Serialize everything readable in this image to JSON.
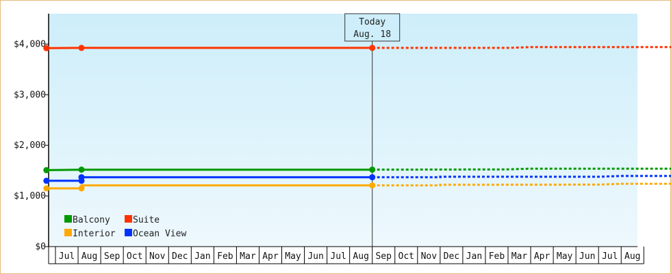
{
  "chart_data": {
    "type": "line",
    "y_ticks": [
      {
        "value": 0,
        "label": "$0"
      },
      {
        "value": 1000,
        "label": "$1,000"
      },
      {
        "value": 2000,
        "label": "$2,000"
      },
      {
        "value": 3000,
        "label": "$3,000"
      },
      {
        "value": 4000,
        "label": "$4,000"
      }
    ],
    "ylim": [
      0,
      4600
    ],
    "months": [
      "Jul",
      "Aug",
      "Sep",
      "Oct",
      "Nov",
      "Dec",
      "Jan",
      "Feb",
      "Mar",
      "Apr",
      "May",
      "Jun",
      "Jul",
      "Aug",
      "Sep",
      "Oct",
      "Nov",
      "Dec",
      "Jan",
      "Feb",
      "Mar",
      "Apr",
      "May",
      "Jun",
      "Jul",
      "Aug"
    ],
    "today": {
      "line1": "Today",
      "line2": "Aug. 18",
      "month_index": 13.5
    },
    "series": [
      {
        "name": "Suite",
        "color": "#ff3300",
        "actual": [
          [
            -0.9,
            3920
          ],
          [
            0.65,
            3925
          ],
          [
            13.5,
            3925
          ]
        ],
        "forecast": [
          [
            13.5,
            3925
          ],
          [
            19.5,
            3925
          ],
          [
            20.5,
            3940
          ],
          [
            26.9,
            3940
          ]
        ]
      },
      {
        "name": "Balcony",
        "color": "#009900",
        "actual": [
          [
            -0.9,
            1510
          ],
          [
            0.65,
            1520
          ],
          [
            13.5,
            1520
          ]
        ],
        "forecast": [
          [
            13.5,
            1520
          ],
          [
            19.5,
            1525
          ],
          [
            20.5,
            1540
          ],
          [
            26.9,
            1540
          ]
        ]
      },
      {
        "name": "Ocean View",
        "color": "#0033ff",
        "actual": [
          [
            -0.9,
            1300
          ],
          [
            0.65,
            1300
          ],
          [
            0.65,
            1370
          ],
          [
            13.5,
            1370
          ]
        ],
        "forecast": [
          [
            13.5,
            1370
          ],
          [
            16.5,
            1370
          ],
          [
            16.5,
            1380
          ],
          [
            23.5,
            1380
          ],
          [
            24.5,
            1395
          ],
          [
            26.9,
            1395
          ]
        ]
      },
      {
        "name": "Interior",
        "color": "#ffaa00",
        "actual": [
          [
            -0.9,
            1150
          ],
          [
            0.65,
            1150
          ],
          [
            0.65,
            1210
          ],
          [
            13.5,
            1210
          ]
        ],
        "forecast": [
          [
            13.5,
            1210
          ],
          [
            16.5,
            1210
          ],
          [
            16.5,
            1220
          ],
          [
            23.5,
            1225
          ],
          [
            24.5,
            1240
          ],
          [
            26.9,
            1240
          ]
        ]
      }
    ],
    "markers": [
      {
        "series": 0,
        "x": -0.9,
        "y": 3920
      },
      {
        "series": 0,
        "x": 0.65,
        "y": 3925
      },
      {
        "series": 0,
        "x": 13.5,
        "y": 3925
      },
      {
        "series": 1,
        "x": -0.9,
        "y": 1510
      },
      {
        "series": 1,
        "x": 0.65,
        "y": 1520
      },
      {
        "series": 1,
        "x": 13.5,
        "y": 1520
      },
      {
        "series": 2,
        "x": -0.9,
        "y": 1300
      },
      {
        "series": 2,
        "x": 0.65,
        "y": 1300
      },
      {
        "series": 2,
        "x": 0.65,
        "y": 1370
      },
      {
        "series": 2,
        "x": 13.5,
        "y": 1370
      },
      {
        "series": 3,
        "x": -0.9,
        "y": 1150
      },
      {
        "series": 3,
        "x": 0.65,
        "y": 1150
      },
      {
        "series": 3,
        "x": 13.5,
        "y": 1210
      }
    ],
    "legend": {
      "placement": "bottom-left",
      "rows": [
        [
          {
            "label": "Balcony",
            "color": "#009900"
          },
          {
            "label": "Suite",
            "color": "#ff3300"
          }
        ],
        [
          {
            "label": "Interior",
            "color": "#ffaa00"
          },
          {
            "label": "Ocean View",
            "color": "#0033ff"
          }
        ]
      ]
    },
    "background_gradient": [
      "#cdeefa",
      "#eef8fd"
    ]
  }
}
